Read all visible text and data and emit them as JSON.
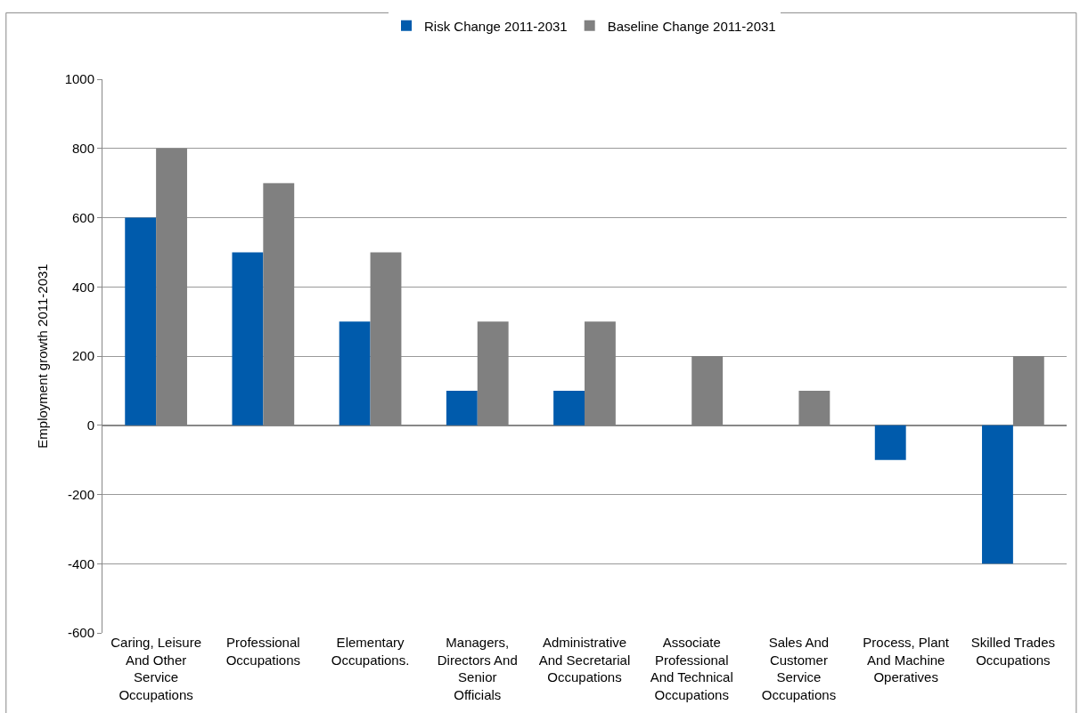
{
  "chart_data": {
    "type": "bar",
    "ylabel": "Employment growth 2011-2031",
    "categories": [
      "Caring, Leisure And Other Service Occupations",
      "Professional Occupations",
      "Elementary Occupations.",
      "Managers, Directors And Senior Officials",
      "Administrative And Secretarial Occupations",
      "Associate Professional And Technical Occupations",
      "Sales And Customer Service Occupations",
      "Process, Plant And Machine Operatives",
      "Skilled Trades Occupations"
    ],
    "series": [
      {
        "name": "Risk Change 2011-2031",
        "color": "#005bac",
        "values": [
          600,
          500,
          300,
          100,
          100,
          0,
          0,
          -100,
          -400
        ]
      },
      {
        "name": "Baseline Change 2011-2031",
        "color": "#808080",
        "values": [
          800,
          700,
          500,
          300,
          300,
          200,
          100,
          0,
          200
        ]
      }
    ],
    "ylim": [
      -600,
      1000
    ],
    "yticks": [
      -600,
      -400,
      -200,
      0,
      200,
      400,
      600,
      800,
      1000
    ],
    "grid": "y",
    "legend": "top"
  }
}
